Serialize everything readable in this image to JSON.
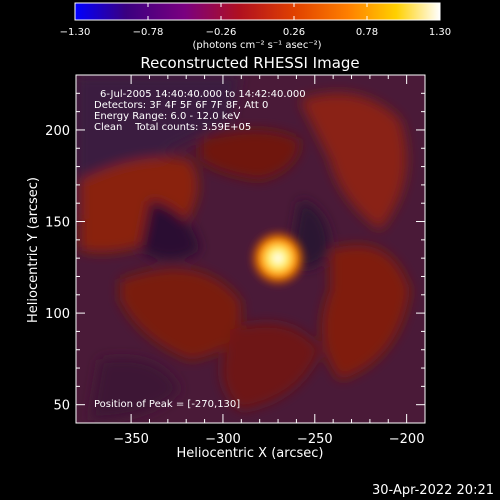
{
  "chart_data": {
    "type": "heatmap",
    "title": "Reconstructed RHESSI Image",
    "xlabel": "Heliocentric X (arcsec)",
    "ylabel": "Heliocentric Y (arcsec)",
    "xlim": [
      -380,
      -190
    ],
    "ylim": [
      40,
      230
    ],
    "xticks": [
      -350,
      -300,
      -250,
      -200
    ],
    "xtick_labels": [
      "−350",
      "−300",
      "−250",
      "−200"
    ],
    "yticks": [
      50,
      100,
      150,
      200
    ],
    "ytick_labels": [
      "50",
      "100",
      "150",
      "200"
    ],
    "colorbar": {
      "min": -1.3,
      "max": 1.3,
      "ticks": [
        -1.3,
        -0.78,
        -0.26,
        0.26,
        0.78,
        1.3
      ],
      "tick_labels": [
        "−1.30",
        "−0.78",
        "−0.26",
        "0.26",
        "0.78",
        "1.30"
      ],
      "label": "(photons cm⁻² s⁻¹ asec⁻²)",
      "colors": [
        "#0000ff",
        "#3a0080",
        "#7a0080",
        "#b01020",
        "#e04000",
        "#ff8000",
        "#ffd000",
        "#ffffff"
      ]
    },
    "peak": {
      "x": -270,
      "y": 130,
      "value": 1.3
    },
    "annotations": [
      "6-Jul-2005 14:40:40.000 to 14:42:40.000",
      "Detectors: 3F 4F 5F 6F 7F 8F, Att 0",
      "Energy Range: 6.0 - 12.0 keV",
      "Clean    Total counts: 3.59E+05"
    ],
    "peak_label": "Position of Peak = [-270,130]",
    "grid": false
  },
  "footer": {
    "date": "30-Apr-2022 20:21"
  }
}
